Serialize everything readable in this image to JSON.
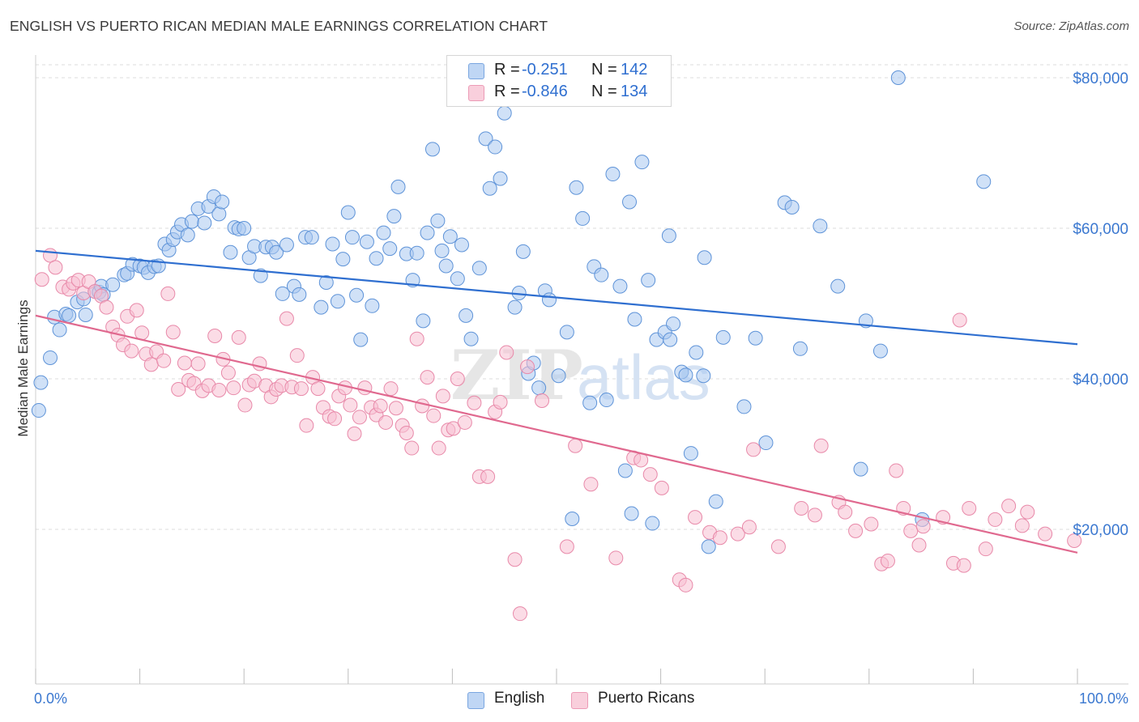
{
  "title": "ENGLISH VS PUERTO RICAN MEDIAN MALE EARNINGS CORRELATION CHART",
  "source": "Source: ZipAtlas.com",
  "watermark": {
    "zip": "ZIP",
    "atlas": "atlas"
  },
  "legend": {
    "english": {
      "r_label": "R =",
      "r_value": "-0.251",
      "n_label": "N =",
      "n_value": "142"
    },
    "puerto": {
      "r_label": "R =",
      "r_value": "-0.846",
      "n_label": "N =",
      "n_value": "134"
    }
  },
  "bottom_legend": {
    "english": "English",
    "puerto": "Puerto Ricans"
  },
  "colors": {
    "english_fill": "#a9c8f0",
    "english_stroke": "#5e93d8",
    "english_line": "#2f6fd0",
    "puerto_fill": "#f7bfd1",
    "puerto_stroke": "#e889a9",
    "puerto_line": "#e0698f",
    "tick_label": "#3b78d0",
    "grid": "#dcdcdc"
  },
  "chart_data": {
    "type": "scatter",
    "title": "ENGLISH VS PUERTO RICAN MEDIAN MALE EARNINGS CORRELATION CHART",
    "xlabel": "",
    "ylabel": "Median Male Earnings",
    "xlim": [
      0,
      100
    ],
    "ylim": [
      0,
      82000
    ],
    "x_tick_labels": [
      "0.0%",
      "100.0%"
    ],
    "y_ticks": [
      20000,
      40000,
      60000,
      80000
    ],
    "y_tick_labels": [
      "$20,000",
      "$40,000",
      "$60,000",
      "$80,000"
    ],
    "grid": "horizontal dashed",
    "legend_position": "top-center",
    "series": [
      {
        "name": "English",
        "r": -0.251,
        "n": 142,
        "trend": {
          "x": [
            0,
            100
          ],
          "y": [
            57000,
            44600
          ]
        },
        "points": [
          [
            0.3,
            35800
          ],
          [
            0.5,
            39500
          ],
          [
            1.4,
            42800
          ],
          [
            1.8,
            48200
          ],
          [
            2.3,
            46500
          ],
          [
            2.9,
            48600
          ],
          [
            3.2,
            48400
          ],
          [
            4.0,
            50200
          ],
          [
            4.6,
            50600
          ],
          [
            4.8,
            48500
          ],
          [
            5.7,
            51600
          ],
          [
            6.1,
            51500
          ],
          [
            6.3,
            52300
          ],
          [
            6.5,
            51200
          ],
          [
            7.4,
            52500
          ],
          [
            8.5,
            53800
          ],
          [
            8.8,
            54000
          ],
          [
            9.3,
            55200
          ],
          [
            10.0,
            55000
          ],
          [
            10.4,
            54800
          ],
          [
            10.8,
            54100
          ],
          [
            11.4,
            54900
          ],
          [
            11.8,
            55000
          ],
          [
            12.4,
            57900
          ],
          [
            12.8,
            57100
          ],
          [
            13.2,
            58500
          ],
          [
            13.6,
            59500
          ],
          [
            14.0,
            60500
          ],
          [
            14.6,
            59100
          ],
          [
            15.0,
            60900
          ],
          [
            15.6,
            62600
          ],
          [
            16.2,
            60700
          ],
          [
            16.6,
            62900
          ],
          [
            17.1,
            64200
          ],
          [
            17.6,
            61900
          ],
          [
            17.9,
            63500
          ],
          [
            18.7,
            56800
          ],
          [
            19.1,
            60100
          ],
          [
            19.5,
            59900
          ],
          [
            20.0,
            60000
          ],
          [
            20.5,
            56100
          ],
          [
            21.0,
            57600
          ],
          [
            21.6,
            53700
          ],
          [
            22.1,
            57500
          ],
          [
            22.7,
            57500
          ],
          [
            23.1,
            56800
          ],
          [
            23.7,
            51300
          ],
          [
            24.1,
            57800
          ],
          [
            24.8,
            52300
          ],
          [
            25.3,
            51200
          ],
          [
            25.9,
            58800
          ],
          [
            26.5,
            58800
          ],
          [
            27.4,
            49500
          ],
          [
            27.9,
            52800
          ],
          [
            28.5,
            57900
          ],
          [
            29.0,
            50300
          ],
          [
            29.5,
            55900
          ],
          [
            30.0,
            62100
          ],
          [
            30.4,
            58800
          ],
          [
            30.8,
            51100
          ],
          [
            31.2,
            45200
          ],
          [
            31.8,
            58200
          ],
          [
            32.3,
            49700
          ],
          [
            32.7,
            56000
          ],
          [
            33.4,
            59400
          ],
          [
            34.0,
            57300
          ],
          [
            34.4,
            61600
          ],
          [
            34.8,
            65500
          ],
          [
            35.6,
            56600
          ],
          [
            36.2,
            53100
          ],
          [
            36.6,
            56700
          ],
          [
            37.2,
            47700
          ],
          [
            37.6,
            59400
          ],
          [
            38.1,
            70500
          ],
          [
            38.6,
            61000
          ],
          [
            39.0,
            57000
          ],
          [
            39.4,
            55000
          ],
          [
            39.8,
            58900
          ],
          [
            40.5,
            53300
          ],
          [
            40.9,
            57800
          ],
          [
            41.3,
            48400
          ],
          [
            41.8,
            45300
          ],
          [
            42.6,
            54700
          ],
          [
            43.2,
            71900
          ],
          [
            43.6,
            65300
          ],
          [
            44.1,
            70800
          ],
          [
            44.6,
            66600
          ],
          [
            45.0,
            75300
          ],
          [
            46.0,
            49500
          ],
          [
            46.4,
            51400
          ],
          [
            46.8,
            56900
          ],
          [
            47.3,
            40700
          ],
          [
            47.8,
            42100
          ],
          [
            48.3,
            38800
          ],
          [
            48.9,
            51700
          ],
          [
            49.3,
            50500
          ],
          [
            50.2,
            40400
          ],
          [
            51.0,
            46200
          ],
          [
            51.9,
            65400
          ],
          [
            52.5,
            61300
          ],
          [
            53.2,
            36800
          ],
          [
            53.6,
            54900
          ],
          [
            54.3,
            53800
          ],
          [
            54.8,
            37200
          ],
          [
            55.4,
            67200
          ],
          [
            56.1,
            52300
          ],
          [
            56.6,
            27800
          ],
          [
            57.0,
            63500
          ],
          [
            57.5,
            47900
          ],
          [
            58.2,
            68800
          ],
          [
            58.8,
            53100
          ],
          [
            59.6,
            45200
          ],
          [
            60.4,
            46200
          ],
          [
            60.8,
            59000
          ],
          [
            61.2,
            47300
          ],
          [
            62.0,
            40900
          ],
          [
            62.4,
            40500
          ],
          [
            62.9,
            30100
          ],
          [
            63.4,
            43500
          ],
          [
            64.2,
            56100
          ],
          [
            64.6,
            17700
          ],
          [
            65.3,
            23700
          ],
          [
            66.0,
            45500
          ],
          [
            68.0,
            36300
          ],
          [
            69.1,
            45400
          ],
          [
            70.1,
            31500
          ],
          [
            71.9,
            63400
          ],
          [
            72.6,
            62800
          ],
          [
            73.4,
            44000
          ],
          [
            75.3,
            60300
          ],
          [
            77.0,
            52300
          ],
          [
            79.2,
            28000
          ],
          [
            79.7,
            47700
          ],
          [
            81.1,
            43700
          ],
          [
            82.8,
            80000
          ],
          [
            85.1,
            21300
          ],
          [
            91.0,
            66200
          ],
          [
            51.5,
            21400
          ],
          [
            59.2,
            20800
          ],
          [
            57.2,
            22100
          ],
          [
            64.1,
            40400
          ],
          [
            60.9,
            45200
          ]
        ]
      },
      {
        "name": "Puerto Ricans",
        "r": -0.846,
        "n": 134,
        "trend": {
          "x": [
            0,
            100
          ],
          "y": [
            48400,
            16900
          ]
        },
        "points": [
          [
            0.6,
            53200
          ],
          [
            1.4,
            56400
          ],
          [
            1.9,
            54800
          ],
          [
            2.6,
            52200
          ],
          [
            3.2,
            51900
          ],
          [
            3.6,
            52700
          ],
          [
            4.1,
            53100
          ],
          [
            4.6,
            51400
          ],
          [
            5.1,
            52900
          ],
          [
            5.7,
            51600
          ],
          [
            6.3,
            51000
          ],
          [
            6.8,
            49500
          ],
          [
            7.4,
            46900
          ],
          [
            7.9,
            45800
          ],
          [
            8.4,
            44500
          ],
          [
            8.8,
            48300
          ],
          [
            9.2,
            43700
          ],
          [
            9.7,
            49100
          ],
          [
            10.2,
            46100
          ],
          [
            10.6,
            43300
          ],
          [
            11.1,
            41900
          ],
          [
            11.6,
            43600
          ],
          [
            12.3,
            42400
          ],
          [
            12.7,
            51300
          ],
          [
            13.2,
            46200
          ],
          [
            13.7,
            38600
          ],
          [
            14.3,
            42100
          ],
          [
            14.7,
            39800
          ],
          [
            15.2,
            39400
          ],
          [
            15.6,
            42000
          ],
          [
            16.0,
            38400
          ],
          [
            16.6,
            39100
          ],
          [
            17.2,
            45700
          ],
          [
            17.6,
            38500
          ],
          [
            18.0,
            42600
          ],
          [
            18.5,
            40800
          ],
          [
            19.0,
            38800
          ],
          [
            19.5,
            45500
          ],
          [
            20.1,
            36500
          ],
          [
            20.5,
            39200
          ],
          [
            21.0,
            39700
          ],
          [
            21.5,
            42000
          ],
          [
            22.1,
            39100
          ],
          [
            22.6,
            37600
          ],
          [
            23.1,
            38600
          ],
          [
            23.6,
            39100
          ],
          [
            24.1,
            48000
          ],
          [
            24.6,
            38900
          ],
          [
            25.1,
            43100
          ],
          [
            25.5,
            38700
          ],
          [
            26.0,
            33800
          ],
          [
            26.6,
            40200
          ],
          [
            27.1,
            38700
          ],
          [
            27.6,
            36200
          ],
          [
            28.2,
            35000
          ],
          [
            28.7,
            34700
          ],
          [
            29.1,
            37700
          ],
          [
            29.7,
            38800
          ],
          [
            30.2,
            36500
          ],
          [
            30.6,
            32700
          ],
          [
            31.1,
            34900
          ],
          [
            31.6,
            38800
          ],
          [
            32.2,
            36200
          ],
          [
            32.7,
            35200
          ],
          [
            33.1,
            36400
          ],
          [
            33.6,
            34200
          ],
          [
            34.1,
            38700
          ],
          [
            34.6,
            36100
          ],
          [
            35.2,
            33800
          ],
          [
            35.6,
            32800
          ],
          [
            36.1,
            30800
          ],
          [
            36.6,
            45300
          ],
          [
            37.1,
            36400
          ],
          [
            37.6,
            40200
          ],
          [
            38.2,
            35100
          ],
          [
            38.7,
            30800
          ],
          [
            39.1,
            37700
          ],
          [
            39.6,
            33200
          ],
          [
            40.1,
            33400
          ],
          [
            40.5,
            40000
          ],
          [
            41.2,
            34200
          ],
          [
            42.1,
            36800
          ],
          [
            42.6,
            27000
          ],
          [
            43.4,
            27000
          ],
          [
            44.1,
            35600
          ],
          [
            44.6,
            36900
          ],
          [
            45.2,
            43500
          ],
          [
            46.0,
            16000
          ],
          [
            46.5,
            8800
          ],
          [
            47.2,
            41600
          ],
          [
            48.6,
            37100
          ],
          [
            51.0,
            17700
          ],
          [
            51.8,
            31100
          ],
          [
            53.3,
            26000
          ],
          [
            55.7,
            16200
          ],
          [
            57.4,
            29500
          ],
          [
            58.1,
            29200
          ],
          [
            59.0,
            27300
          ],
          [
            60.1,
            25500
          ],
          [
            61.8,
            13300
          ],
          [
            62.4,
            12600
          ],
          [
            63.3,
            21600
          ],
          [
            64.7,
            19600
          ],
          [
            65.7,
            18900
          ],
          [
            67.4,
            19400
          ],
          [
            68.5,
            20300
          ],
          [
            68.9,
            30600
          ],
          [
            71.3,
            17700
          ],
          [
            73.5,
            22800
          ],
          [
            74.8,
            21900
          ],
          [
            75.4,
            31100
          ],
          [
            77.1,
            23600
          ],
          [
            77.7,
            22300
          ],
          [
            78.7,
            19800
          ],
          [
            80.2,
            20700
          ],
          [
            81.2,
            15400
          ],
          [
            81.8,
            15800
          ],
          [
            82.6,
            27800
          ],
          [
            83.3,
            22800
          ],
          [
            84.0,
            19800
          ],
          [
            84.8,
            17900
          ],
          [
            85.2,
            20400
          ],
          [
            87.1,
            21600
          ],
          [
            88.1,
            15500
          ],
          [
            88.7,
            47800
          ],
          [
            89.1,
            15200
          ],
          [
            89.6,
            22800
          ],
          [
            91.2,
            17400
          ],
          [
            92.1,
            21300
          ],
          [
            93.4,
            23100
          ],
          [
            94.7,
            20500
          ],
          [
            95.2,
            22300
          ],
          [
            96.9,
            19400
          ],
          [
            99.7,
            18500
          ]
        ]
      }
    ]
  }
}
